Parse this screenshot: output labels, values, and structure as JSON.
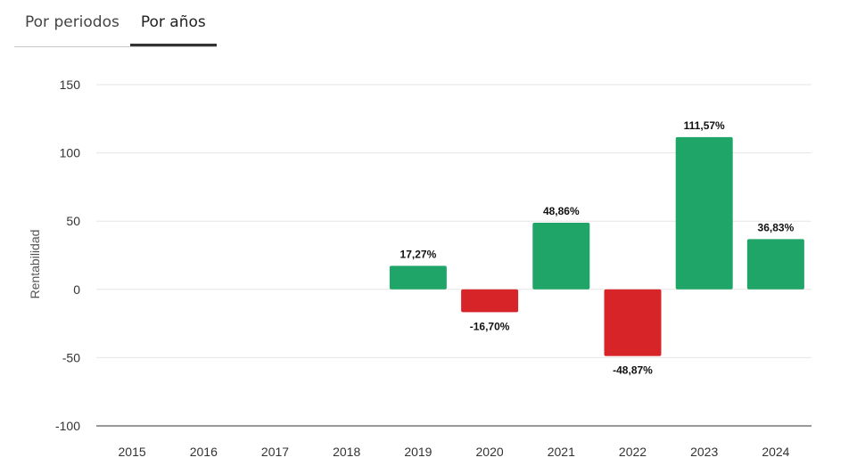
{
  "tabs": [
    {
      "label": "Por periodos",
      "active": false
    },
    {
      "label": "Por años",
      "active": true
    }
  ],
  "chart_data": {
    "type": "bar",
    "categories": [
      "2015",
      "2016",
      "2017",
      "2018",
      "2019",
      "2020",
      "2021",
      "2022",
      "2023",
      "2024"
    ],
    "values": [
      null,
      null,
      null,
      null,
      17.27,
      -16.7,
      48.86,
      -48.87,
      111.57,
      36.83
    ],
    "data_labels": [
      "",
      "",
      "",
      "",
      "17,27%",
      "-16,70%",
      "48,86%",
      "-48,87%",
      "111,57%",
      "36,83%"
    ],
    "xlabel": "",
    "ylabel": "Rentabilidad",
    "ylim": [
      -100,
      150
    ],
    "yticks": [
      150,
      100,
      50,
      0,
      -50,
      -100
    ],
    "grid": true,
    "colors": {
      "positive": "#1fa567",
      "negative": "#d72428",
      "grid": "#e6e6e6",
      "baseline": "#333333"
    }
  }
}
